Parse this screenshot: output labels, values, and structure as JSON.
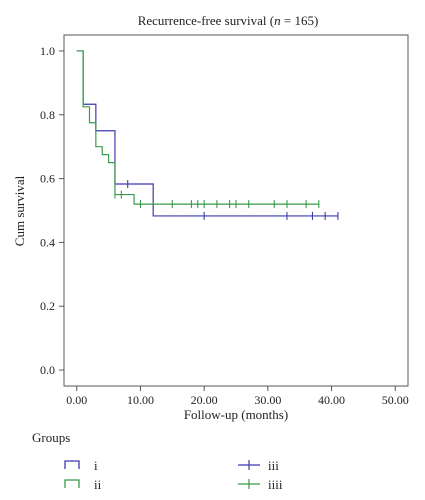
{
  "chart_data": {
    "type": "line",
    "subtype": "kaplan-meier step",
    "title": "Recurrence-free survival (n = 165)",
    "title_parts": {
      "pre": "Recurrence-free survival (",
      "italic": "n",
      "post": " = 165)"
    },
    "xlabel": "Follow-up (months)",
    "ylabel": "Cum survival",
    "xlim": [
      -2,
      52
    ],
    "ylim": [
      -0.05,
      1.05
    ],
    "xticks": [
      0,
      10,
      20,
      30,
      40,
      50
    ],
    "xtick_labels": [
      "0.00",
      "10.00",
      "20.00",
      "30.00",
      "40.00",
      "50.00"
    ],
    "yticks": [
      0.0,
      0.2,
      0.4,
      0.6,
      0.8,
      1.0
    ],
    "ytick_labels": [
      "0.0",
      "0.2",
      "0.4",
      "0.6",
      "0.8",
      "1.0"
    ],
    "grid": false,
    "legend_title": "Groups",
    "legend_placement": "bottom",
    "series": [
      {
        "name": "i",
        "color": "#3b3bb0",
        "steps": [
          [
            0,
            1.0
          ],
          [
            1,
            0.833
          ],
          [
            3,
            0.75
          ],
          [
            6,
            0.583
          ],
          [
            12,
            0.483
          ],
          [
            41,
            0.483
          ]
        ],
        "censored": [
          [
            8,
            0.583
          ],
          [
            20,
            0.483
          ],
          [
            33,
            0.483
          ],
          [
            37,
            0.483
          ],
          [
            39,
            0.483
          ],
          [
            41,
            0.483
          ]
        ]
      },
      {
        "name": "ii",
        "color": "#3a9a4a",
        "steps": [
          [
            0,
            1.0
          ],
          [
            1,
            0.825
          ],
          [
            2,
            0.775
          ],
          [
            3,
            0.7
          ],
          [
            4,
            0.675
          ],
          [
            5,
            0.65
          ],
          [
            6,
            0.55
          ],
          [
            9,
            0.52
          ],
          [
            38,
            0.52
          ]
        ],
        "censored": [
          [
            6,
            0.55
          ],
          [
            7,
            0.55
          ],
          [
            10,
            0.52
          ],
          [
            15,
            0.52
          ],
          [
            18,
            0.52
          ],
          [
            19,
            0.52
          ],
          [
            20,
            0.52
          ],
          [
            22,
            0.52
          ],
          [
            24,
            0.52
          ],
          [
            25,
            0.52
          ],
          [
            27,
            0.52
          ],
          [
            31,
            0.52
          ],
          [
            33,
            0.52
          ],
          [
            36,
            0.52
          ],
          [
            38,
            0.52
          ]
        ]
      },
      {
        "name": "iii",
        "color": "#3b3bb0",
        "censored_legend": true
      },
      {
        "name": "iiii",
        "color": "#3a9a4a",
        "censored_legend": true
      }
    ]
  }
}
